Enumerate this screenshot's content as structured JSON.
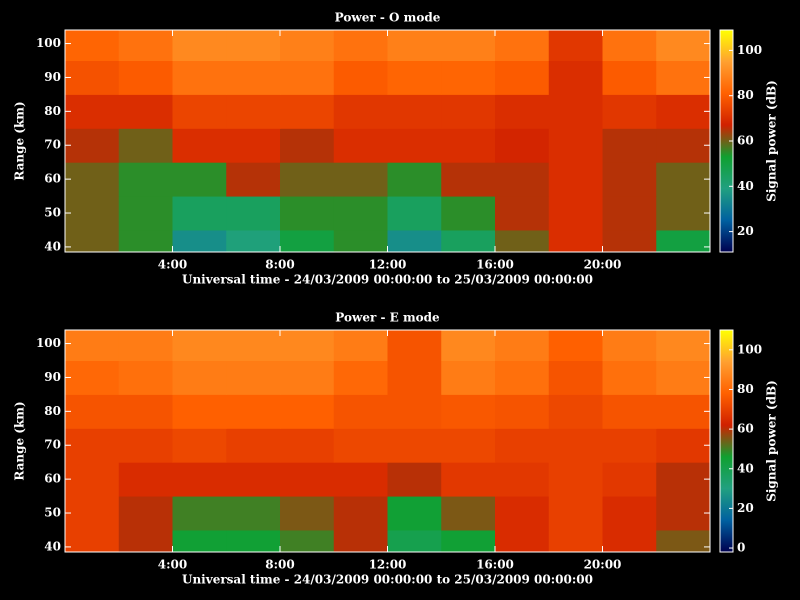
{
  "chart_data": [
    {
      "type": "heatmap",
      "title": "Power - O mode",
      "x_label": "Universal time - 24/03/2009 00:00:00 to 25/03/2009 00:00:00",
      "y_label": "Range (km)",
      "colorbar_label": "Signal power (dB)",
      "x_edges": [
        0,
        2,
        4,
        6,
        8,
        10,
        12,
        14,
        16,
        18,
        20,
        22,
        24
      ],
      "y_edges": [
        38.5,
        45,
        55,
        65,
        75,
        85,
        95,
        104
      ],
      "z": [
        [
          60,
          55,
          35,
          40,
          50,
          55,
          35,
          45,
          60,
          70,
          65,
          50
        ],
        [
          60,
          55,
          45,
          45,
          55,
          55,
          45,
          55,
          65,
          70,
          65,
          60
        ],
        [
          60,
          55,
          55,
          65,
          60,
          60,
          55,
          65,
          65,
          70,
          65,
          60
        ],
        [
          65,
          60,
          70,
          70,
          65,
          70,
          70,
          70,
          68,
          70,
          65,
          65
        ],
        [
          70,
          70,
          75,
          75,
          75,
          72,
          72,
          72,
          70,
          70,
          72,
          70
        ],
        [
          78,
          80,
          85,
          85,
          85,
          80,
          82,
          82,
          80,
          70,
          80,
          85
        ],
        [
          82,
          85,
          90,
          90,
          88,
          85,
          88,
          88,
          85,
          72,
          85,
          90
        ]
      ],
      "colormap": [
        "#000050",
        "#0060a0",
        "#20a080",
        "#10a030",
        "#d02000",
        "#ff6000",
        "#ffa030",
        "#ffff00"
      ],
      "xlim": [
        0,
        24
      ],
      "xticks": [
        {
          "value": 4,
          "label": "4:00"
        },
        {
          "value": 8,
          "label": "8:00"
        },
        {
          "value": 12,
          "label": "12:00"
        },
        {
          "value": 16,
          "label": "16:00"
        },
        {
          "value": 20,
          "label": "20:00"
        }
      ],
      "ylim": [
        38.5,
        104
      ],
      "yticks": [
        40,
        50,
        60,
        70,
        80,
        90,
        100
      ],
      "clim": [
        11,
        109
      ],
      "cticks": [
        20,
        40,
        60,
        80,
        100
      ]
    },
    {
      "type": "heatmap",
      "title": "Power - E mode",
      "x_label": "Universal time - 24/03/2009 00:00:00 to 25/03/2009 00:00:00",
      "y_label": "Range (km)",
      "colorbar_label": "Signal power (dB)",
      "x_edges": [
        0,
        2,
        4,
        6,
        8,
        10,
        12,
        14,
        16,
        18,
        20,
        22,
        24
      ],
      "y_edges": [
        38.5,
        45,
        55,
        65,
        75,
        85,
        95,
        104
      ],
      "z": [
        [
          70,
          60,
          45,
          45,
          50,
          60,
          40,
          45,
          65,
          70,
          65,
          55
        ],
        [
          70,
          60,
          50,
          50,
          55,
          60,
          45,
          55,
          65,
          70,
          65,
          60
        ],
        [
          70,
          65,
          65,
          65,
          65,
          65,
          60,
          68,
          68,
          70,
          68,
          60
        ],
        [
          70,
          70,
          72,
          70,
          70,
          72,
          72,
          72,
          70,
          70,
          70,
          68
        ],
        [
          75,
          75,
          78,
          78,
          78,
          75,
          75,
          76,
          75,
          72,
          75,
          75
        ],
        [
          80,
          82,
          85,
          85,
          85,
          80,
          75,
          85,
          82,
          75,
          82,
          85
        ],
        [
          85,
          85,
          88,
          88,
          88,
          85,
          75,
          88,
          85,
          78,
          85,
          88
        ]
      ],
      "colormap": [
        "#000050",
        "#0060a0",
        "#20a080",
        "#10a030",
        "#d02000",
        "#ff6000",
        "#ffa030",
        "#ffff00"
      ],
      "xlim": [
        0,
        24
      ],
      "xticks": [
        {
          "value": 4,
          "label": "4:00"
        },
        {
          "value": 8,
          "label": "8:00"
        },
        {
          "value": 12,
          "label": "12:00"
        },
        {
          "value": 16,
          "label": "16:00"
        },
        {
          "value": 20,
          "label": "20:00"
        }
      ],
      "ylim": [
        38.5,
        104
      ],
      "yticks": [
        40,
        50,
        60,
        70,
        80,
        90,
        100
      ],
      "clim": [
        -2,
        110
      ],
      "cticks": [
        0,
        20,
        40,
        60,
        80,
        100
      ]
    }
  ]
}
